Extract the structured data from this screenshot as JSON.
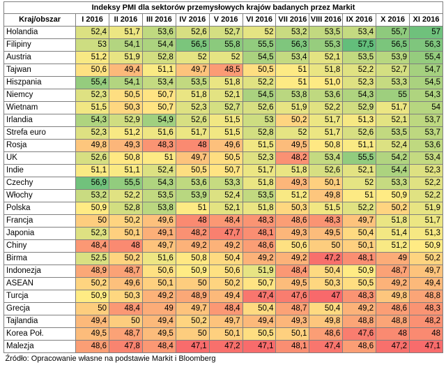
{
  "title": "Indeksy PMI dla sektorów przemysłowych krajów badanych przez Markit",
  "header_first": "Kraj/obszar",
  "months": [
    "I 2016",
    "II 2016",
    "III 2016",
    "IV 2016",
    "V 2016",
    "VI 2016",
    "VII 2016",
    "VIII 2016",
    "IX 2016",
    "X 2016",
    "XI 2016"
  ],
  "rows": [
    {
      "country": "Holandia",
      "values": [
        "52,4",
        "51,7",
        "53,6",
        "52,6",
        "52,7",
        "52",
        "53,2",
        "53,5",
        "53,4",
        "55,7",
        "57"
      ]
    },
    {
      "country": "Filipiny",
      "values": [
        "53",
        "54,1",
        "54,4",
        "56,5",
        "55,8",
        "55,5",
        "56,3",
        "55,3",
        "57,5",
        "56,5",
        "56,3"
      ]
    },
    {
      "country": "Austria",
      "values": [
        "51,2",
        "51,9",
        "52,8",
        "52",
        "52",
        "54,5",
        "53,4",
        "52,1",
        "53,5",
        "53,9",
        "55,4"
      ]
    },
    {
      "country": "Tajwan",
      "values": [
        "50,6",
        "49,4",
        "51,1",
        "49,7",
        "48,5",
        "50,5",
        "51",
        "51,8",
        "52,2",
        "52,7",
        "54,7"
      ]
    },
    {
      "country": "Hiszpania",
      "values": [
        "55,4",
        "54,1",
        "53,4",
        "53,5",
        "51,8",
        "52,2",
        "51",
        "51,0",
        "52,3",
        "53,3",
        "54,5"
      ]
    },
    {
      "country": "Niemcy",
      "values": [
        "52,3",
        "50,5",
        "50,7",
        "51,8",
        "52,1",
        "54,5",
        "53,8",
        "53,6",
        "54,3",
        "55",
        "54,3"
      ]
    },
    {
      "country": "Wietnam",
      "values": [
        "51,5",
        "50,3",
        "50,7",
        "52,3",
        "52,7",
        "52,6",
        "51,9",
        "52,2",
        "52,9",
        "51,7",
        "54"
      ]
    },
    {
      "country": "Irlandia",
      "values": [
        "54,3",
        "52,9",
        "54,9",
        "52,6",
        "51,5",
        "53",
        "50,2",
        "51,7",
        "51,3",
        "52,1",
        "53,7"
      ]
    },
    {
      "country": "Strefa euro",
      "values": [
        "52,3",
        "51,2",
        "51,6",
        "51,7",
        "51,5",
        "52,8",
        "52",
        "51,7",
        "52,6",
        "53,5",
        "53,7"
      ]
    },
    {
      "country": "Rosja",
      "values": [
        "49,8",
        "49,3",
        "48,3",
        "48",
        "49,6",
        "51,5",
        "49,5",
        "50,8",
        "51,1",
        "52,4",
        "53,6"
      ]
    },
    {
      "country": "UK",
      "values": [
        "52,6",
        "50,8",
        "51",
        "49,7",
        "50,5",
        "52,3",
        "48,2",
        "53,4",
        "55,5",
        "54,2",
        "53,4"
      ]
    },
    {
      "country": "Indie",
      "values": [
        "51,1",
        "51,1",
        "52,4",
        "50,5",
        "50,7",
        "51,7",
        "51,8",
        "52,6",
        "52,1",
        "54,4",
        "52,3"
      ]
    },
    {
      "country": "Czechy",
      "values": [
        "56,9",
        "55,5",
        "54,3",
        "53,6",
        "53,3",
        "51,8",
        "49,3",
        "50,1",
        "52",
        "53,3",
        "52,2"
      ]
    },
    {
      "country": "Włochy",
      "values": [
        "53,2",
        "52,2",
        "53,5",
        "53,9",
        "52,4",
        "53,5",
        "51,2",
        "49,8",
        "51",
        "50,9",
        "52,2"
      ]
    },
    {
      "country": "Polska",
      "values": [
        "50,9",
        "52,8",
        "53,8",
        "51",
        "52,1",
        "51,8",
        "50,3",
        "51,5",
        "52,2",
        "50,2",
        "51,9"
      ]
    },
    {
      "country": "Francja",
      "values": [
        "50",
        "50,2",
        "49,6",
        "48",
        "48,4",
        "48,3",
        "48,6",
        "48,3",
        "49,7",
        "51,8",
        "51,7"
      ]
    },
    {
      "country": "Japonia",
      "values": [
        "52,3",
        "50,1",
        "49,1",
        "48,2",
        "47,7",
        "48,1",
        "49,3",
        "49,5",
        "50,4",
        "51,4",
        "51,3"
      ]
    },
    {
      "country": "Chiny",
      "values": [
        "48,4",
        "48",
        "49,7",
        "49,2",
        "49,2",
        "48,6",
        "50,6",
        "50",
        "50,1",
        "51,2",
        "50,9"
      ]
    },
    {
      "country": "Birma",
      "values": [
        "52,5",
        "50,2",
        "51,6",
        "50,8",
        "50,4",
        "49,2",
        "49,2",
        "47,2",
        "48,1",
        "49",
        "50,2"
      ]
    },
    {
      "country": "Indonezja",
      "values": [
        "48,9",
        "48,7",
        "50,6",
        "50,9",
        "50,6",
        "51,9",
        "48,4",
        "50,4",
        "50,9",
        "48,7",
        "49,7"
      ]
    },
    {
      "country": "ASEAN",
      "values": [
        "50,2",
        "49,6",
        "50,1",
        "50",
        "50,2",
        "50,7",
        "49,5",
        "50,3",
        "50,5",
        "49,2",
        "49,4"
      ]
    },
    {
      "country": "Turcja",
      "values": [
        "50,9",
        "50,3",
        "49,2",
        "48,9",
        "49,4",
        "47,4",
        "47,6",
        "47",
        "48,3",
        "49,8",
        "48,8"
      ]
    },
    {
      "country": "Grecja",
      "values": [
        "50",
        "48,4",
        "49",
        "49,7",
        "48,4",
        "50,4",
        "48,7",
        "50,4",
        "49,2",
        "48,6",
        "48,3"
      ]
    },
    {
      "country": "Tajlandia",
      "values": [
        "49,4",
        "50",
        "49,4",
        "50,2",
        "49,7",
        "49,4",
        "49,3",
        "49,8",
        "48,8",
        "48,8",
        "48,2"
      ]
    },
    {
      "country": "Korea Poł.",
      "values": [
        "49,5",
        "48,7",
        "49,5",
        "50",
        "50,1",
        "50,5",
        "50,1",
        "48,6",
        "47,6",
        "48",
        "48"
      ]
    },
    {
      "country": "Malezja",
      "values": [
        "48,6",
        "47,8",
        "48,4",
        "47,1",
        "47,2",
        "47,1",
        "48,1",
        "47,4",
        "48,6",
        "47,2",
        "47,1"
      ]
    }
  ],
  "source": "Źródło: Opracowanie własne na podstawie Markit i Bloomberg"
}
